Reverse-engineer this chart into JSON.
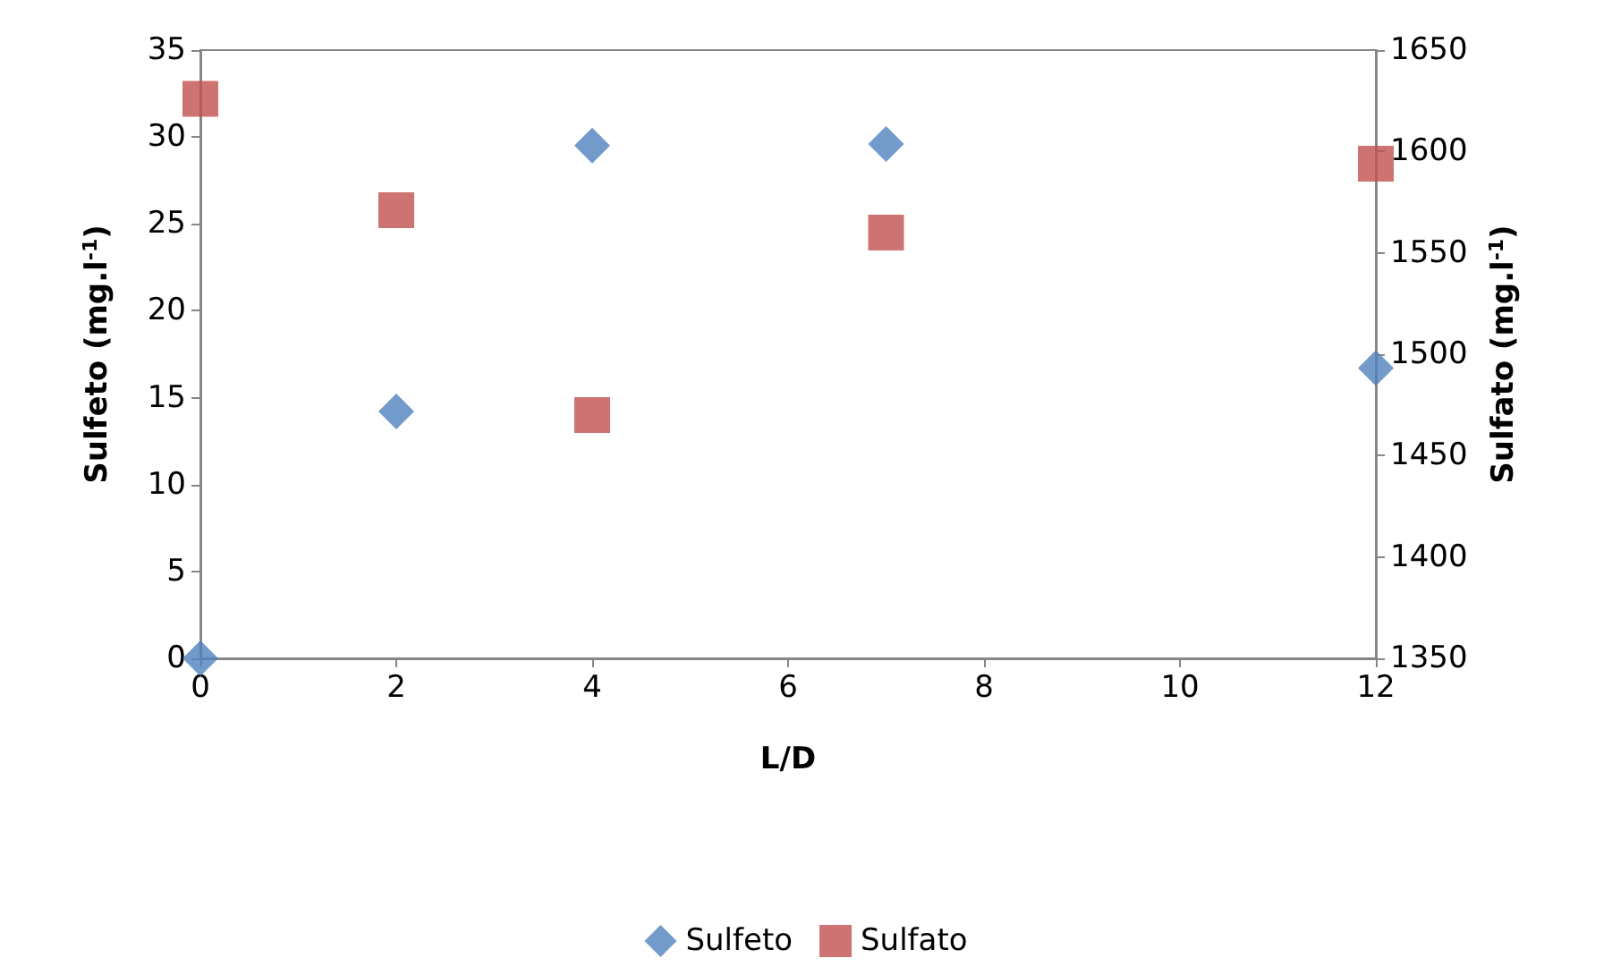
{
  "chart_data": {
    "type": "scatter",
    "xlabel": "L/D",
    "ylabel": "Sulfeto (mg.l$^{-1}$)",
    "y2label": "Sulfato (mg.l$^{-1}$)",
    "x": [
      0,
      2,
      4,
      7,
      12
    ],
    "series": [
      {
        "name": "Sulfeto",
        "color": "#4f81bd",
        "marker": "diamond",
        "values": [
          0,
          14.2,
          29.5,
          29.6,
          16.7
        ]
      },
      {
        "name": "Sulfato",
        "color": "#c0504d",
        "marker": "square",
        "axis": "y2",
        "values": [
          1626,
          1571,
          1470,
          1560,
          1594
        ]
      }
    ],
    "xlim": [
      0,
      12
    ],
    "xticks": [
      0,
      2,
      4,
      6,
      8,
      10,
      12
    ],
    "ylim": [
      0,
      35
    ],
    "yticks": [
      0,
      5,
      10,
      15,
      20,
      25,
      30,
      35
    ],
    "y2lim": [
      1350,
      1650
    ],
    "y2ticks": [
      1350,
      1400,
      1450,
      1500,
      1550,
      1600,
      1650
    ],
    "grid": false,
    "legend": "bottom"
  }
}
